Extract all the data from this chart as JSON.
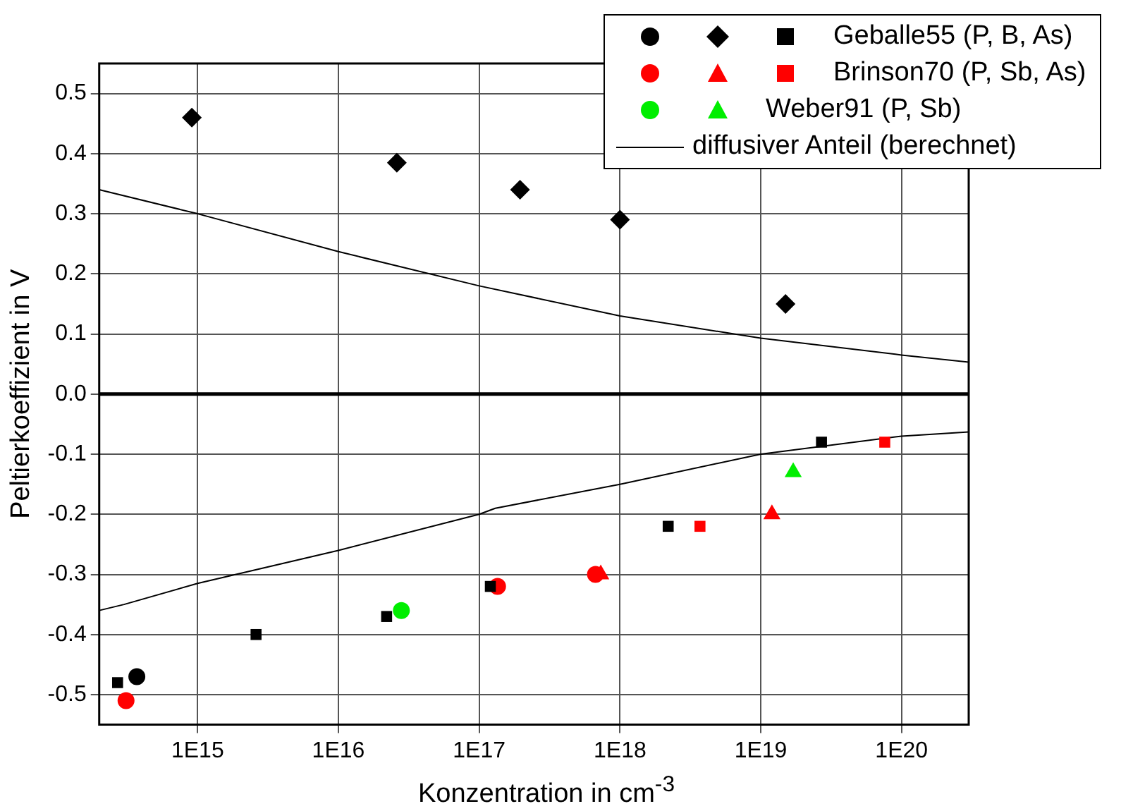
{
  "chart_data": {
    "type": "scatter",
    "xlabel": "Konzentration in cm$^{-3}$",
    "ylabel": "Peltierkoeffizient in V",
    "log": "x",
    "grid": true,
    "legend": "top right",
    "xlim": [
      200000000000000.0,
      3e+20
    ],
    "xticks": [
      {
        "value": 1000000000000000.0,
        "label": "1E15"
      },
      {
        "value": 1e+16,
        "label": "1E16"
      },
      {
        "value": 1e+17,
        "label": "1E17"
      },
      {
        "value": 1e+18,
        "label": "1E18"
      },
      {
        "value": 1e+19,
        "label": "1E19"
      },
      {
        "value": 1e+20,
        "label": "1E20"
      }
    ],
    "ylim": [
      -0.55,
      0.55
    ],
    "yticks": [
      -0.5,
      -0.4,
      -0.3,
      -0.2,
      -0.1,
      {
        "value": 0,
        "label": "0.0"
      },
      0.1,
      0.2,
      0.3,
      0.4,
      0.5
    ],
    "ref_lines": [
      {
        "axis": "y",
        "value": 0
      }
    ],
    "series": [
      {
        "color": "#000000",
        "marker": "circle",
        "x": [
          370000000000000.0
        ],
        "values": [
          -0.47
        ]
      },
      {
        "color": "#000000",
        "marker": "diamond",
        "x": [
          910000000000000.0,
          2.6e+16,
          1.95e+17,
          1e+18,
          1.5e+19
        ],
        "values": [
          0.46,
          0.385,
          0.34,
          0.29,
          0.15
        ]
      },
      {
        "name": "Geballe55 (P, B, As)",
        "color": "#000000",
        "marker": "square",
        "x": [
          270000000000000.0,
          2600000000000000.0,
          2.2e+16,
          1.2e+17,
          2.2e+18,
          2.7e+19
        ],
        "values": [
          -0.48,
          -0.4,
          -0.37,
          -0.32,
          -0.22,
          -0.08
        ]
      },
      {
        "color": "#ff0000",
        "marker": "circle",
        "x": [
          310000000000000.0,
          1.35e+17,
          6.7e+17
        ],
        "values": [
          -0.51,
          -0.32,
          -0.3
        ]
      },
      {
        "color": "#ff0000",
        "marker": "triangle",
        "x": [
          7.3e+17,
          1.2e+19
        ],
        "values": [
          -0.3,
          -0.2
        ]
      },
      {
        "name": "Brinson70 (P, Sb, As)",
        "color": "#ff0000",
        "marker": "square",
        "x": [
          3.7e+18,
          7.6e+19
        ],
        "values": [
          -0.22,
          -0.08
        ]
      },
      {
        "color": "#00ee00",
        "marker": "circle",
        "x": [
          2.8e+16
        ],
        "values": [
          -0.36
        ]
      },
      {
        "name": "Weber91 (P, Sb)",
        "color": "#00ee00",
        "marker": "triangle",
        "x": [
          1.7e+19
        ],
        "values": [
          -0.13
        ]
      },
      {
        "type": "line",
        "color": "#000000",
        "marker": "none",
        "x": [
          200000000000000.0,
          1000000000000000.0,
          1e+16,
          1e+17,
          1e+18,
          1e+19,
          1e+20,
          3e+20
        ],
        "values": [
          0.34,
          0.3,
          0.237,
          0.18,
          0.13,
          0.093,
          0.065,
          0.053
        ]
      },
      {
        "type": "line",
        "name": "diffusiver Anteil (berechnet)",
        "color": "#000000",
        "marker": "none",
        "x": [
          200000000000000.0,
          300000000000000.0,
          1000000000000000.0,
          1e+16,
          1e+17,
          1.3e+17,
          1e+18,
          1e+19,
          1e+20,
          3e+20
        ],
        "values": [
          -0.36,
          -0.35,
          -0.315,
          -0.26,
          -0.2,
          -0.19,
          -0.15,
          -0.1,
          -0.07,
          -0.063
        ]
      }
    ]
  }
}
